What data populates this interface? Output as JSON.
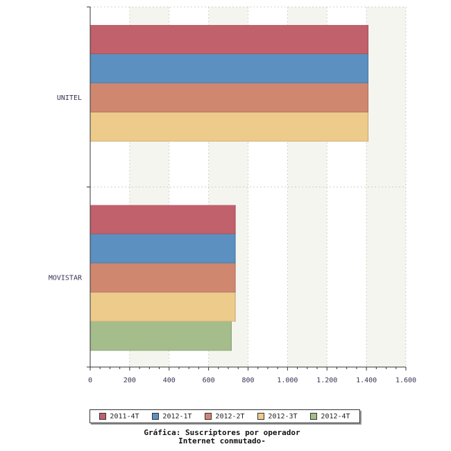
{
  "chart_data": {
    "type": "bar",
    "orientation": "horizontal",
    "categories": [
      "UNITEL",
      "MOVISTAR"
    ],
    "series": [
      {
        "name": "2011-4T",
        "color": "#c0616b",
        "values": [
          1410,
          737
        ]
      },
      {
        "name": "2012-1T",
        "color": "#5b90c0",
        "values": [
          1410,
          737
        ]
      },
      {
        "name": "2012-2T",
        "color": "#d08770",
        "values": [
          1410,
          737
        ]
      },
      {
        "name": "2012-3T",
        "color": "#eccb8b",
        "values": [
          1410,
          737
        ]
      },
      {
        "name": "2012-4T",
        "color": "#a4bd8b",
        "values": [
          null,
          717
        ]
      }
    ],
    "xlim": [
      0,
      1600
    ],
    "x_ticks": [
      0,
      200,
      400,
      600,
      800,
      1000,
      1200,
      1400,
      1600
    ],
    "x_tick_labels": [
      "0",
      "200",
      "400",
      "600",
      "800",
      "1.000",
      "1.200",
      "1.400",
      "1.600"
    ],
    "grid": true,
    "legend_position": "bottom"
  },
  "caption": {
    "line1": "Gráfica: Suscriptores por operador",
    "line2": "Internet conmutado-"
  }
}
